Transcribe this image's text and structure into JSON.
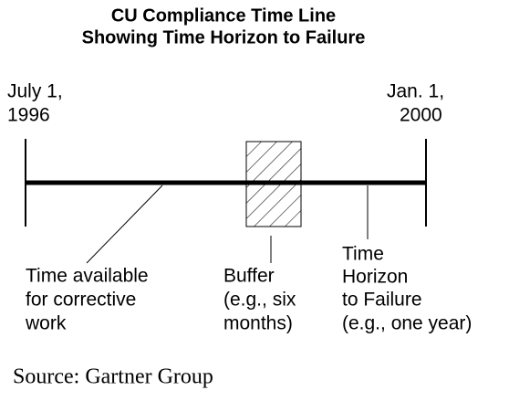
{
  "header": {
    "title": [
      "CU Compliance Time Line",
      "Showing Time Horizon to Failure"
    ]
  },
  "start": [
    "July 1,",
    "1996"
  ],
  "end": [
    "Jan. 1,",
    "2000"
  ],
  "labels": {
    "available": [
      "Time available",
      "for corrective",
      "work"
    ],
    "buffer": [
      "Buffer",
      "(e.g., six",
      "months)"
    ],
    "horizon": [
      "Time",
      "Horizon",
      "to Failure",
      "(e.g., one year)"
    ]
  },
  "source": "Source: Gartner Group"
}
